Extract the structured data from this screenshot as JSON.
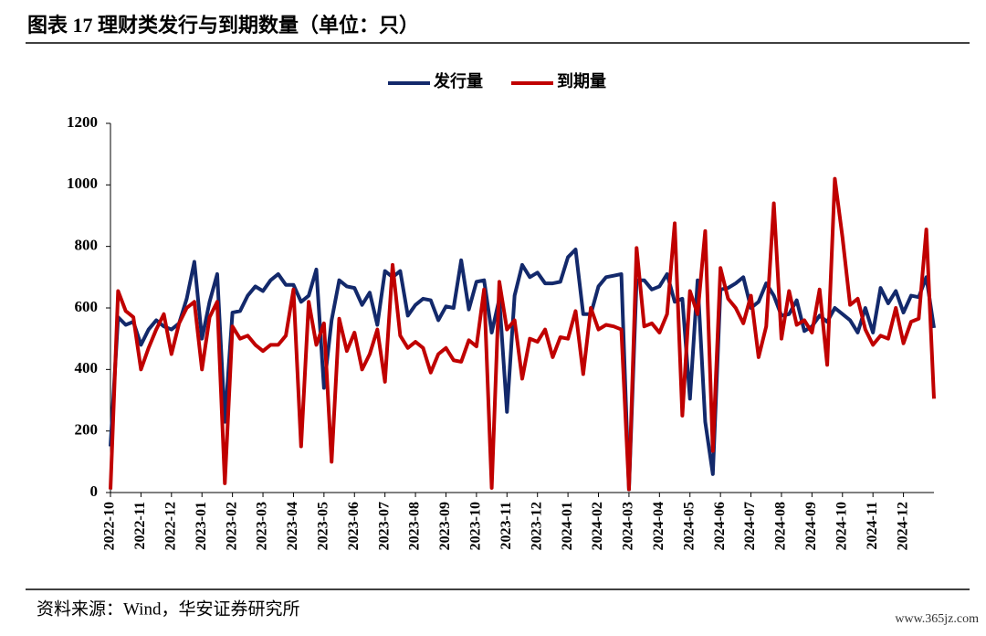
{
  "chart_data": {
    "type": "line",
    "title": "图表 17 理财类发行与到期数量（单位：只）",
    "source": "资料来源：Wind，华安证券研究所",
    "watermark": "www.365jz.com",
    "categories": [
      "2022-10",
      null,
      null,
      null,
      "2022-11",
      null,
      null,
      null,
      "2022-12",
      null,
      null,
      null,
      "2023-01",
      null,
      null,
      null,
      "2023-02",
      null,
      null,
      null,
      "2023-03",
      null,
      null,
      null,
      "2023-04",
      null,
      null,
      null,
      "2023-05",
      null,
      null,
      null,
      "2023-06",
      null,
      null,
      null,
      "2023-07",
      null,
      null,
      null,
      "2023-08",
      null,
      null,
      null,
      "2023-09",
      null,
      null,
      null,
      "2023-10",
      null,
      null,
      null,
      "2023-11",
      null,
      null,
      null,
      "2023-12",
      null,
      null,
      null,
      "2024-01",
      null,
      null,
      null,
      "2024-02",
      null,
      null,
      null,
      "2024-03",
      null,
      null,
      null,
      "2024-04",
      null,
      null,
      null,
      "2024-05",
      null,
      null,
      null,
      "2024-06",
      null,
      null,
      null,
      "2024-07",
      null,
      null,
      null,
      "2024-08",
      null,
      null,
      null,
      "2024-09",
      null,
      null,
      null,
      "2024-10",
      null,
      null,
      null,
      "2024-11",
      null,
      null,
      null,
      "2024-12",
      null,
      null,
      null,
      null
    ],
    "series": [
      {
        "name": "发行量",
        "color": "#13296b",
        "values": [
          150,
          570,
          545,
          555,
          480,
          530,
          560,
          540,
          530,
          550,
          630,
          750,
          500,
          620,
          710,
          230,
          585,
          590,
          640,
          670,
          655,
          690,
          710,
          675,
          675,
          620,
          640,
          725,
          340,
          560,
          690,
          670,
          665,
          610,
          650,
          545,
          720,
          700,
          720,
          575,
          610,
          630,
          625,
          560,
          605,
          600,
          755,
          595,
          685,
          690,
          520,
          630,
          262,
          640,
          740,
          700,
          715,
          680,
          680,
          685,
          765,
          790,
          580,
          580,
          670,
          700,
          705,
          710,
          10,
          690,
          690,
          660,
          670,
          710,
          620,
          630,
          305,
          690,
          230,
          60,
          660,
          665,
          680,
          700,
          600,
          620,
          680,
          640,
          575,
          580,
          625,
          525,
          540,
          575,
          555,
          600,
          580,
          560,
          520,
          600,
          520,
          665,
          615,
          655,
          585,
          640,
          635,
          700,
          535
        ]
      },
      {
        "name": "到期量",
        "color": "#c00000",
        "values": [
          10,
          655,
          590,
          570,
          400,
          470,
          530,
          580,
          450,
          550,
          600,
          620,
          400,
          570,
          620,
          30,
          540,
          500,
          510,
          480,
          460,
          480,
          480,
          510,
          660,
          150,
          620,
          480,
          550,
          100,
          565,
          460,
          520,
          400,
          450,
          530,
          360,
          740,
          510,
          470,
          490,
          470,
          390,
          450,
          470,
          430,
          425,
          495,
          475,
          660,
          15,
          685,
          530,
          560,
          370,
          500,
          490,
          530,
          440,
          505,
          500,
          590,
          385,
          600,
          530,
          545,
          540,
          530,
          10,
          795,
          540,
          550,
          520,
          580,
          875,
          250,
          655,
          580,
          850,
          135,
          730,
          630,
          600,
          550,
          640,
          440,
          540,
          940,
          500,
          655,
          545,
          560,
          520,
          660,
          415,
          1020,
          830,
          610,
          630,
          530,
          480,
          510,
          500,
          600,
          485,
          555,
          565,
          855,
          305
        ]
      }
    ],
    "ylim": [
      0,
      1200
    ],
    "yticks": [
      0,
      200,
      400,
      600,
      800,
      1000,
      1200
    ],
    "legend": "top"
  }
}
